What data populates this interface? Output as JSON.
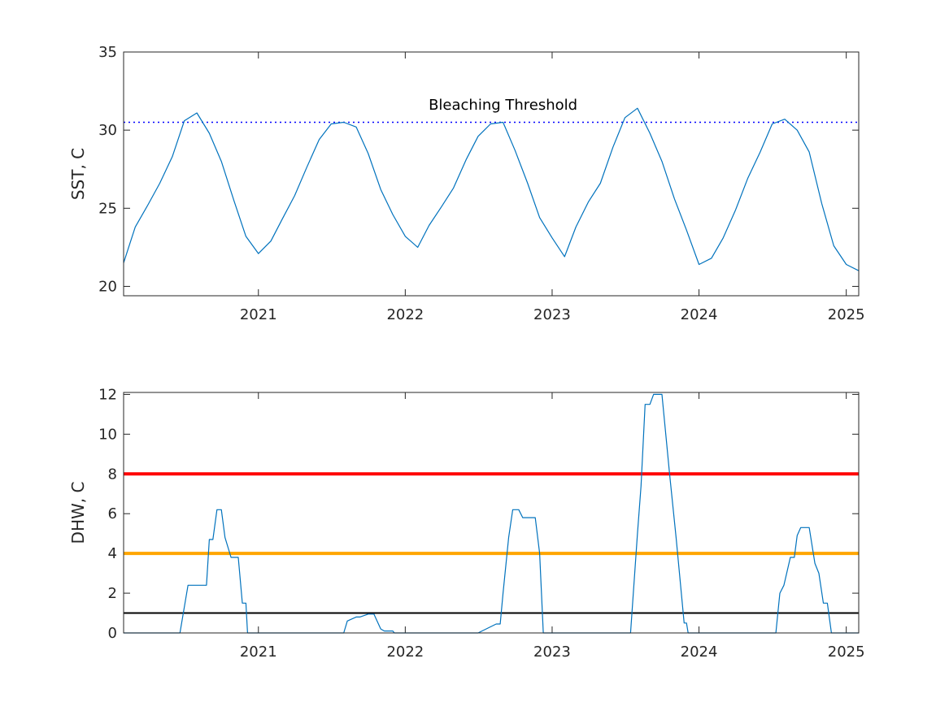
{
  "chart_data": [
    {
      "type": "line",
      "ylabel": "SST, C",
      "ylim": [
        19.4,
        35
      ],
      "xlim": [
        "2020-02-01",
        "2025-02-01"
      ],
      "yticks": [
        20,
        25,
        30,
        35
      ],
      "xticks": [
        "2021",
        "2022",
        "2023",
        "2024",
        "2025"
      ],
      "grid": false,
      "series": [
        {
          "color": "#0072BD",
          "x": [
            "2020-02-01",
            "2020-03-01",
            "2020-04-01",
            "2020-05-01",
            "2020-06-01",
            "2020-07-01",
            "2020-08-01",
            "2020-09-01",
            "2020-10-01",
            "2020-11-01",
            "2020-12-01",
            "2021-01-01",
            "2021-02-01",
            "2021-03-01",
            "2021-04-01",
            "2021-05-01",
            "2021-06-01",
            "2021-07-01",
            "2021-08-01",
            "2021-09-01",
            "2021-10-01",
            "2021-11-01",
            "2021-12-01",
            "2022-01-01",
            "2022-02-01",
            "2022-03-01",
            "2022-04-01",
            "2022-05-01",
            "2022-06-01",
            "2022-07-01",
            "2022-08-01",
            "2022-09-01",
            "2022-10-01",
            "2022-11-01",
            "2022-12-01",
            "2023-01-01",
            "2023-02-01",
            "2023-03-01",
            "2023-04-01",
            "2023-05-01",
            "2023-06-01",
            "2023-07-01",
            "2023-08-01",
            "2023-09-01",
            "2023-10-01",
            "2023-11-01",
            "2023-12-01",
            "2024-01-01",
            "2024-02-01",
            "2024-03-01",
            "2024-04-01",
            "2024-05-01",
            "2024-06-01",
            "2024-07-01",
            "2024-08-01",
            "2024-09-01",
            "2024-10-01",
            "2024-11-01",
            "2024-12-01",
            "2025-01-01",
            "2025-02-01"
          ],
          "values": [
            21.5,
            23.8,
            25.2,
            26.6,
            28.3,
            30.6,
            31.1,
            29.8,
            28.0,
            25.5,
            23.2,
            22.1,
            22.9,
            24.3,
            25.8,
            27.6,
            29.4,
            30.4,
            30.5,
            30.2,
            28.5,
            26.2,
            24.6,
            23.2,
            22.5,
            23.9,
            25.1,
            26.3,
            28.1,
            29.6,
            30.4,
            30.5,
            28.7,
            26.6,
            24.4,
            23.1,
            21.9,
            23.8,
            25.4,
            26.6,
            28.9,
            30.8,
            31.4,
            29.8,
            28.0,
            25.6,
            23.6,
            21.4,
            21.8,
            23.1,
            24.9,
            26.9,
            28.6,
            30.4,
            30.7,
            30.0,
            28.6,
            25.3,
            22.6,
            21.4,
            21.0
          ]
        }
      ],
      "reference_lines": [
        {
          "y": 30.5,
          "color": "#0000FF",
          "style": "dotted"
        }
      ],
      "annotations": [
        {
          "text": "Bleaching Threshold",
          "x": "2022-09-01",
          "y": 31.0
        }
      ]
    },
    {
      "type": "line",
      "ylabel": "DHW, C",
      "ylim": [
        0,
        12.1
      ],
      "xlim": [
        "2020-02-01",
        "2025-02-01"
      ],
      "yticks": [
        0,
        2,
        4,
        6,
        8,
        10,
        12
      ],
      "xticks": [
        "2021",
        "2022",
        "2023",
        "2024",
        "2025"
      ],
      "grid": false,
      "series": [
        {
          "color": "#0072BD",
          "x": [
            "2020-02-01",
            "2020-06-20",
            "2020-07-10",
            "2020-08-25",
            "2020-09-01",
            "2020-09-10",
            "2020-09-20",
            "2020-10-01",
            "2020-10-10",
            "2020-10-25",
            "2020-11-01",
            "2020-11-12",
            "2020-11-22",
            "2020-12-01",
            "2020-12-05",
            "2021-08-01",
            "2021-08-10",
            "2021-09-01",
            "2021-09-10",
            "2021-10-01",
            "2021-10-15",
            "2021-11-01",
            "2021-11-10",
            "2021-12-01",
            "2021-12-05",
            "2022-07-01",
            "2022-08-15",
            "2022-08-25",
            "2022-09-01",
            "2022-09-15",
            "2022-09-25",
            "2022-10-10",
            "2022-10-20",
            "2022-11-10",
            "2022-11-20",
            "2022-12-01",
            "2022-12-10",
            "2023-02-01",
            "2023-06-01",
            "2023-07-15",
            "2023-08-01",
            "2023-08-10",
            "2023-08-20",
            "2023-09-01",
            "2023-09-10",
            "2023-10-01",
            "2023-10-20",
            "2023-11-05",
            "2023-11-25",
            "2023-12-01",
            "2023-12-05",
            "2024-07-01",
            "2024-07-10",
            "2024-07-20",
            "2024-07-30",
            "2024-08-15",
            "2024-08-25",
            "2024-09-01",
            "2024-09-10",
            "2024-09-20",
            "2024-10-01",
            "2024-10-15",
            "2024-10-25",
            "2024-11-05",
            "2024-11-15",
            "2024-11-25",
            "2024-12-01",
            "2025-02-01"
          ],
          "values": [
            0,
            0,
            2.4,
            2.4,
            4.7,
            4.7,
            6.2,
            6.2,
            4.8,
            3.8,
            3.8,
            3.8,
            1.5,
            1.5,
            0,
            0,
            0.6,
            0.8,
            0.8,
            0.95,
            0.95,
            0.2,
            0.1,
            0.1,
            0,
            0,
            0.45,
            0.45,
            2.0,
            4.8,
            6.2,
            6.2,
            5.8,
            5.8,
            5.8,
            4.0,
            0,
            0,
            0,
            0,
            5.0,
            7.4,
            11.5,
            11.5,
            12.0,
            12.0,
            8.0,
            4.8,
            0.5,
            0.5,
            0,
            0,
            0,
            2.0,
            2.4,
            3.8,
            3.8,
            4.9,
            5.3,
            5.3,
            5.3,
            3.5,
            3.0,
            1.5,
            1.5,
            0,
            0,
            0
          ]
        }
      ],
      "reference_lines": [
        {
          "y": 1,
          "color": "#000000",
          "style": "solid"
        },
        {
          "y": 4,
          "color": "#FFA500",
          "style": "solid"
        },
        {
          "y": 8,
          "color": "#FF0000",
          "style": "solid"
        }
      ]
    }
  ]
}
